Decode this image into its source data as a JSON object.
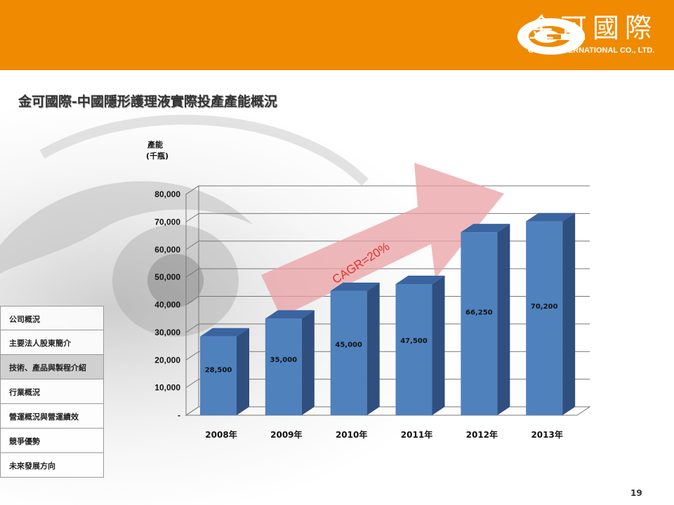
{
  "header": {
    "logo_cn": "金可國際",
    "logo_en": "GINKO INTERNATIONAL CO., LTD.",
    "color": "#F08A00"
  },
  "title": "金可國際-中國隱形護理液實際投產產能概況",
  "nav": {
    "items": [
      {
        "label": "公司概況"
      },
      {
        "label": "主要法人股東簡介"
      },
      {
        "label": "技術、產品與製程介紹",
        "active": true
      },
      {
        "label": "行業概況"
      },
      {
        "label": "營運概況與營運績效"
      },
      {
        "label": "競爭優勢"
      },
      {
        "label": "未來發展方向"
      }
    ]
  },
  "page_number": "19",
  "chart_data": {
    "type": "bar",
    "ylabel": "產能",
    "yunit": "(千瓶)",
    "categories": [
      "2008年",
      "2009年",
      "2010年",
      "2011年",
      "2012年",
      "2013年"
    ],
    "values": [
      28500,
      35000,
      45000,
      47500,
      66250,
      70200
    ],
    "value_labels": [
      "28,500",
      "35,000",
      "45,000",
      "47,500",
      "66,250",
      "70,200"
    ],
    "yticks": [
      "-",
      "10,000",
      "20,000",
      "30,000",
      "40,000",
      "50,000",
      "60,000",
      "70,000",
      "80,000"
    ],
    "ylim": [
      0,
      80000
    ],
    "annotation": "CAGR=20%",
    "bar_color": "#4F81BD",
    "grid": true
  }
}
